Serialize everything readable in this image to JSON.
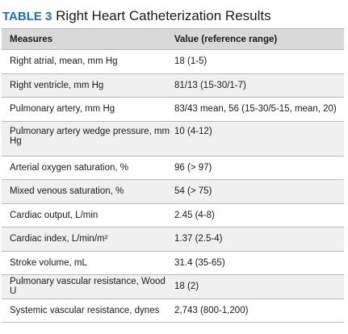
{
  "title": {
    "label": "TABLE 3",
    "text": "Right Heart Catheterization Results"
  },
  "headers": {
    "measures": "Measures",
    "value": "Value (reference range)"
  },
  "rows": [
    {
      "measure": "Right atrial, mean, mm Hg",
      "value": "18 (1-5)"
    },
    {
      "measure": "Right ventricle, mm Hg",
      "value": "81/13 (15-30/1-7)"
    },
    {
      "measure": "Pulmonary artery, mm Hg",
      "value": "83/43 mean, 56 (15-30/5-15, mean, 20)"
    },
    {
      "measure": "Pulmonary artery wedge pressure, mm Hg",
      "value": "10 (4-12)"
    },
    {
      "measure": "Arterial oxygen saturation, %",
      "value": "96 (> 97)"
    },
    {
      "measure": "Mixed venous saturation, %",
      "value": "54 (> 75)"
    },
    {
      "measure": "Cardiac output, L/min",
      "value": "2.45 (4-8)"
    },
    {
      "measure": "Cardiac index, L/min/m²",
      "value": "1.37 (2.5-4)"
    },
    {
      "measure": "Stroke volume, mL",
      "value": "31.4 (35-65)"
    },
    {
      "measure": "Pulmonary vascular resistance, Wood U",
      "value": "18 (2)"
    },
    {
      "measure": "Systemic vascular resistance, dynes",
      "value": "2,743 (800-1,200)"
    }
  ],
  "colors": {
    "label_blue": "#1f6fb2",
    "header_bg": "#d9d9d9",
    "alt_row_bg": "#f0f0f0",
    "rule": "#b8b8b8"
  }
}
